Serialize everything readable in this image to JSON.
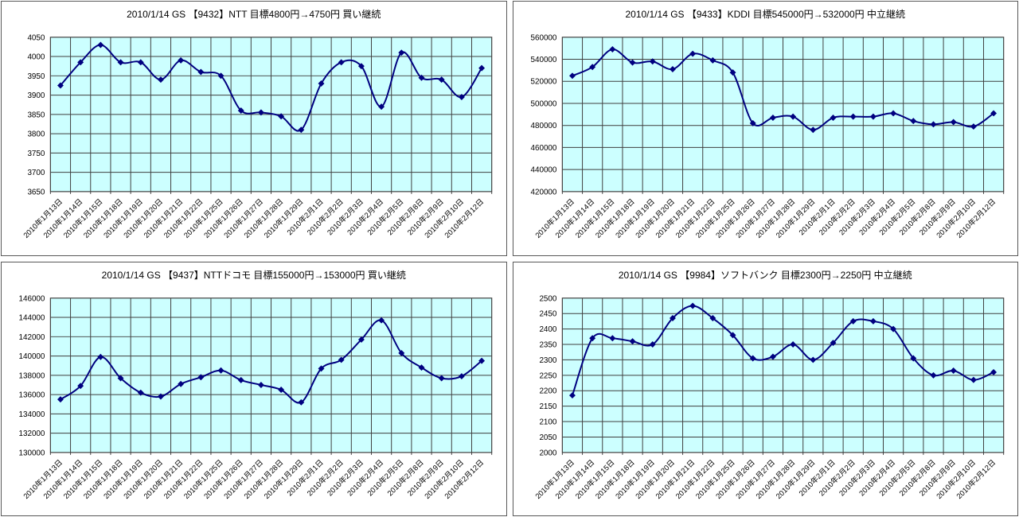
{
  "colors": {
    "plot_bg": "#CCFFFF",
    "line": "#000080",
    "marker": "#000080",
    "gridline": "#3f3f3f",
    "plot_border": "#3f3f3f",
    "panel_border": "#595959",
    "text": "#000000",
    "page_bg": "#FFFFFF"
  },
  "chart_data": [
    {
      "type": "line",
      "title": "2010/1/14 GS 【9432】NTT 目標4800円→4750円 買い継続",
      "categories": [
        "2010年1月13日",
        "2010年1月14日",
        "2010年1月15日",
        "2010年1月18日",
        "2010年1月19日",
        "2010年1月20日",
        "2010年1月21日",
        "2010年1月22日",
        "2010年1月25日",
        "2010年1月26日",
        "2010年1月27日",
        "2010年1月28日",
        "2010年1月29日",
        "2010年2月1日",
        "2010年2月2日",
        "2010年2月3日",
        "2010年2月4日",
        "2010年2月5日",
        "2010年2月8日",
        "2010年2月9日",
        "2010年2月10日",
        "2010年2月12日"
      ],
      "values": [
        3925,
        3985,
        4030,
        3985,
        3985,
        3940,
        3990,
        3960,
        3950,
        3860,
        3855,
        3845,
        3810,
        3930,
        3985,
        3975,
        3870,
        4010,
        3945,
        3940,
        3895,
        3970
      ],
      "ylim": [
        3650,
        4050
      ],
      "ytick_step": 50,
      "xlabel": "",
      "ylabel": "",
      "grid": true,
      "legend_position": "none",
      "marker": "diamond",
      "smooth": true
    },
    {
      "type": "line",
      "title": "2010/1/14 GS 【9433】KDDI 目標545000円→532000円 中立継続",
      "categories": [
        "2010年1月13日",
        "2010年1月14日",
        "2010年1月15日",
        "2010年1月18日",
        "2010年1月19日",
        "2010年1月20日",
        "2010年1月21日",
        "2010年1月22日",
        "2010年1月25日",
        "2010年1月26日",
        "2010年1月27日",
        "2010年1月28日",
        "2010年1月29日",
        "2010年2月1日",
        "2010年2月2日",
        "2010年2月3日",
        "2010年2月4日",
        "2010年2月5日",
        "2010年2月8日",
        "2010年2月9日",
        "2010年2月10日",
        "2010年2月12日"
      ],
      "values": [
        525000,
        533000,
        549000,
        537000,
        538000,
        531000,
        545000,
        539000,
        528000,
        482000,
        487000,
        488000,
        476000,
        487000,
        488000,
        488000,
        491000,
        484000,
        481000,
        483000,
        479000,
        491000
      ],
      "ylim": [
        420000,
        560000
      ],
      "ytick_step": 20000,
      "xlabel": "",
      "ylabel": "",
      "grid": true,
      "legend_position": "none",
      "marker": "diamond",
      "smooth": true
    },
    {
      "type": "line",
      "title": "2010/1/14 GS 【9437】NTTドコモ 目標155000円→153000円 買い継続",
      "categories": [
        "2010年1月13日",
        "2010年1月14日",
        "2010年1月15日",
        "2010年1月18日",
        "2010年1月19日",
        "2010年1月20日",
        "2010年1月21日",
        "2010年1月22日",
        "2010年1月25日",
        "2010年1月26日",
        "2010年1月27日",
        "2010年1月28日",
        "2010年1月29日",
        "2010年2月1日",
        "2010年2月2日",
        "2010年2月3日",
        "2010年2月4日",
        "2010年2月5日",
        "2010年2月8日",
        "2010年2月9日",
        "2010年2月10日",
        "2010年2月12日"
      ],
      "values": [
        135500,
        136900,
        139900,
        137700,
        136200,
        135800,
        137100,
        137800,
        138500,
        137500,
        137000,
        136500,
        135200,
        138700,
        139600,
        141700,
        143700,
        140300,
        138800,
        137700,
        137900,
        139500
      ],
      "ylim": [
        130000,
        146000
      ],
      "ytick_step": 2000,
      "xlabel": "",
      "ylabel": "",
      "grid": true,
      "legend_position": "none",
      "marker": "diamond",
      "smooth": true
    },
    {
      "type": "line",
      "title": "2010/1/14 GS 【9984】ソフトバンク 目標2300円→2250円 中立継続",
      "categories": [
        "2010年1月13日",
        "2010年1月14日",
        "2010年1月15日",
        "2010年1月18日",
        "2010年1月19日",
        "2010年1月20日",
        "2010年1月21日",
        "2010年1月22日",
        "2010年1月25日",
        "2010年1月26日",
        "2010年1月27日",
        "2010年1月28日",
        "2010年1月29日",
        "2010年2月1日",
        "2010年2月2日",
        "2010年2月3日",
        "2010年2月4日",
        "2010年2月5日",
        "2010年2月8日",
        "2010年2月9日",
        "2010年2月10日",
        "2010年2月12日"
      ],
      "values": [
        2185,
        2370,
        2370,
        2360,
        2350,
        2435,
        2475,
        2435,
        2380,
        2305,
        2310,
        2350,
        2300,
        2355,
        2425,
        2425,
        2400,
        2305,
        2250,
        2265,
        2235,
        2260
      ],
      "ylim": [
        2000,
        2500
      ],
      "ytick_step": 50,
      "xlabel": "",
      "ylabel": "",
      "grid": true,
      "legend_position": "none",
      "marker": "diamond",
      "smooth": true
    }
  ]
}
